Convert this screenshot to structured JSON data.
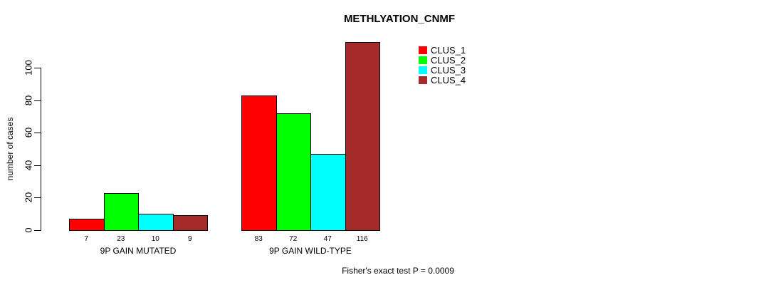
{
  "title": "METHLYATION_CNMF",
  "footer": "Fisher's exact test P = 0.0009",
  "y_axis": {
    "label": "number of cases",
    "ticks": [
      0,
      20,
      40,
      60,
      80,
      100
    ]
  },
  "legend": {
    "items": [
      {
        "label": "CLUS_1",
        "color": "#FF0000"
      },
      {
        "label": "CLUS_2",
        "color": "#00FF00"
      },
      {
        "label": "CLUS_3",
        "color": "#00FFFF"
      },
      {
        "label": "CLUS_4",
        "color": "#A52A2A"
      }
    ]
  },
  "chart_data": {
    "type": "bar",
    "title": "METHLYATION_CNMF",
    "xlabel": "",
    "ylabel": "number of cases",
    "ylim": [
      0,
      116
    ],
    "yticks": [
      0,
      20,
      40,
      60,
      80,
      100
    ],
    "grid": false,
    "legend_position": "top-right",
    "categories": [
      "9P GAIN MUTATED",
      "9P GAIN WILD-TYPE"
    ],
    "series": [
      {
        "name": "CLUS_1",
        "color": "#FF0000",
        "values": [
          7,
          83
        ]
      },
      {
        "name": "CLUS_2",
        "color": "#00FF00",
        "values": [
          23,
          72
        ]
      },
      {
        "name": "CLUS_3",
        "color": "#00FFFF",
        "values": [
          10,
          47
        ]
      },
      {
        "name": "CLUS_4",
        "color": "#A52A2A",
        "values": [
          9,
          116
        ]
      }
    ],
    "bar_value_labels": [
      [
        7,
        23,
        10,
        9
      ],
      [
        83,
        72,
        47,
        116
      ]
    ],
    "annotation": "Fisher's exact test P = 0.0009"
  }
}
